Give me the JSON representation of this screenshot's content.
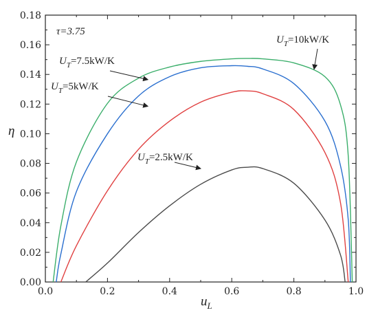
{
  "chart_data": {
    "type": "line",
    "title": "",
    "xlabel": "u",
    "xlabel_sub": "L",
    "ylabel": "η",
    "xlim": [
      0.0,
      1.0
    ],
    "ylim": [
      0.0,
      0.18
    ],
    "xticks": [
      0.0,
      0.2,
      0.4,
      0.6,
      0.8,
      1.0
    ],
    "xtick_labels": [
      "0.0",
      "0.2",
      "0.4",
      "0.6",
      "0.8",
      "1.0"
    ],
    "yticks": [
      0.0,
      0.02,
      0.04,
      0.06,
      0.08,
      0.1,
      0.12,
      0.14,
      0.16,
      0.18
    ],
    "ytick_labels": [
      "0.00",
      "0.02",
      "0.04",
      "0.06",
      "0.08",
      "0.10",
      "0.12",
      "0.14",
      "0.16",
      "0.18"
    ],
    "grid": false,
    "parameter_label": "τ=3.75",
    "series": [
      {
        "color": "#4a4a4a",
        "x": [
          0.13,
          0.2,
          0.3,
          0.4,
          0.5,
          0.6,
          0.65,
          0.7,
          0.8,
          0.9,
          0.95,
          0.965
        ],
        "y": [
          0.0,
          0.0128,
          0.0334,
          0.0514,
          0.0659,
          0.0756,
          0.0774,
          0.0765,
          0.0666,
          0.0418,
          0.0183,
          0.0
        ]
      },
      {
        "color": "#e04040",
        "x": [
          0.05,
          0.1,
          0.2,
          0.3,
          0.4,
          0.5,
          0.6,
          0.65,
          0.7,
          0.8,
          0.9,
          0.95,
          0.975
        ],
        "y": [
          0.0,
          0.0245,
          0.0616,
          0.0895,
          0.1085,
          0.1213,
          0.128,
          0.1289,
          0.127,
          0.1163,
          0.0873,
          0.0535,
          0.0
        ]
      },
      {
        "color": "#2a6fcf",
        "x": [
          0.035,
          0.05,
          0.1,
          0.2,
          0.3,
          0.4,
          0.5,
          0.6,
          0.65,
          0.7,
          0.8,
          0.9,
          0.95,
          0.975,
          0.982
        ],
        "y": [
          0.0,
          0.019,
          0.061,
          0.1,
          0.1255,
          0.1385,
          0.1445,
          0.1459,
          0.1455,
          0.1437,
          0.1338,
          0.1085,
          0.0785,
          0.042,
          0.0
        ]
      },
      {
        "color": "#3aae6a",
        "x": [
          0.025,
          0.05,
          0.1,
          0.2,
          0.3,
          0.4,
          0.5,
          0.6,
          0.65,
          0.7,
          0.8,
          0.9,
          0.95,
          0.975,
          0.988
        ],
        "y": [
          0.0,
          0.038,
          0.081,
          0.1205,
          0.1375,
          0.145,
          0.1488,
          0.1505,
          0.1508,
          0.1505,
          0.1478,
          0.1385,
          0.1195,
          0.085,
          0.0
        ]
      }
    ],
    "annotations": [
      {
        "symbol": "U",
        "sub": "T",
        "text": "=2.5kW/K",
        "point": [
          0.5,
          0.0765
        ]
      },
      {
        "symbol": "U",
        "sub": "T",
        "text": "=5kW/K",
        "point": [
          0.33,
          0.1185
        ]
      },
      {
        "symbol": "U",
        "sub": "T",
        "text": "=7.5kW/K",
        "point": [
          0.33,
          0.1365
        ]
      },
      {
        "symbol": "U",
        "sub": "T",
        "text": "=10kW/K",
        "point": [
          0.865,
          0.1435
        ]
      }
    ]
  }
}
